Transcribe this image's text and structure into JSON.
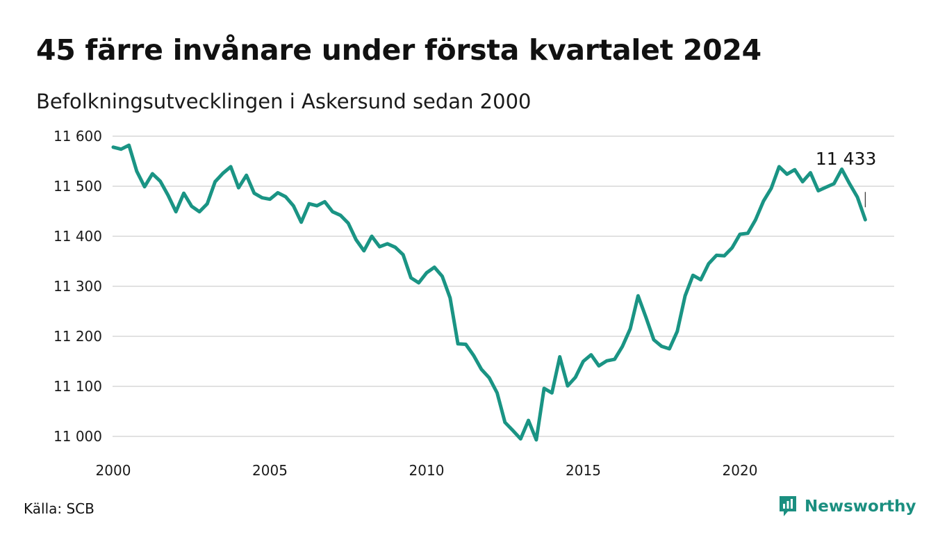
{
  "title": "45 färre invånare under första kvartalet 2024",
  "subtitle": "Befolkningsutvecklingen i Askersund sedan 2000",
  "source": "Källa: SCB",
  "brand": {
    "name": "Newsworthy",
    "icon": "newsworthy-logo-icon",
    "color": "#1b8f80"
  },
  "chart_data": {
    "type": "line",
    "line_color": "#1a9484",
    "grid": true,
    "ylim": [
      11000,
      11600
    ],
    "yticks": [
      11600,
      11500,
      11400,
      11300,
      11200,
      11100,
      11000
    ],
    "ytick_labels": [
      "11 600",
      "11 500",
      "11 400",
      "11 300",
      "11 200",
      "11 100",
      "11 000"
    ],
    "xlim": [
      2000,
      2024.5
    ],
    "xticks": [
      2000,
      2005,
      2010,
      2015,
      2020
    ],
    "xtick_labels": [
      "2000",
      "2005",
      "2010",
      "2015",
      "2020"
    ],
    "end_label": "11 433",
    "series": [
      {
        "x": [
          2000.0,
          2000.25,
          2000.5,
          2000.75,
          2001.0,
          2001.25,
          2001.5,
          2001.75,
          2002.0,
          2002.25,
          2002.5,
          2002.75,
          2003.0,
          2003.25,
          2003.5,
          2003.75,
          2004.0,
          2004.25,
          2004.5,
          2004.75,
          2005.0,
          2005.25,
          2005.5,
          2005.75,
          2006.0,
          2006.25,
          2006.5,
          2006.75,
          2007.0,
          2007.25,
          2007.5,
          2007.75,
          2008.0,
          2008.25,
          2008.5,
          2008.75,
          2009.0,
          2009.25,
          2009.5,
          2009.75,
          2010.0,
          2010.25,
          2010.5,
          2010.75,
          2011.0,
          2011.25,
          2011.5,
          2011.75,
          2012.0,
          2012.25,
          2012.5,
          2012.75,
          2013.0,
          2013.25,
          2013.5,
          2013.75,
          2014.0,
          2014.25,
          2014.5,
          2014.75,
          2015.0,
          2015.25,
          2015.5,
          2015.75,
          2016.0,
          2016.25,
          2016.5,
          2016.75,
          2017.0,
          2017.25,
          2017.5,
          2017.75,
          2018.0,
          2018.25,
          2018.5,
          2018.75,
          2019.0,
          2019.25,
          2019.5,
          2019.75,
          2020.0,
          2020.25,
          2020.5,
          2020.75,
          2021.0,
          2021.25,
          2021.5,
          2021.75,
          2022.0,
          2022.25,
          2022.5,
          2022.75,
          2023.0,
          2023.25,
          2023.5,
          2023.75,
          2024.0
        ],
        "y": [
          11578,
          11574,
          11582,
          11530,
          11499,
          11525,
          11510,
          11482,
          11449,
          11486,
          11460,
          11449,
          11465,
          11509,
          11526,
          11539,
          11497,
          11522,
          11486,
          11477,
          11474,
          11487,
          11479,
          11461,
          11428,
          11465,
          11461,
          11469,
          11449,
          11442,
          11426,
          11393,
          11371,
          11400,
          11379,
          11385,
          11378,
          11363,
          11317,
          11307,
          11327,
          11338,
          11320,
          11277,
          11185,
          11184,
          11162,
          11134,
          11117,
          11087,
          11028,
          11012,
          10995,
          11032,
          10993,
          11096,
          11087,
          11159,
          11101,
          11118,
          11150,
          11163,
          11141,
          11151,
          11154,
          11180,
          11215,
          11281,
          11238,
          11193,
          11180,
          11175,
          11210,
          11281,
          11322,
          11313,
          11345,
          11362,
          11361,
          11377,
          11404,
          11406,
          11433,
          11470,
          11496,
          11539,
          11524,
          11533,
          11509,
          11527,
          11491,
          11498,
          11505,
          11534,
          11505,
          11478,
          11433
        ]
      }
    ]
  }
}
